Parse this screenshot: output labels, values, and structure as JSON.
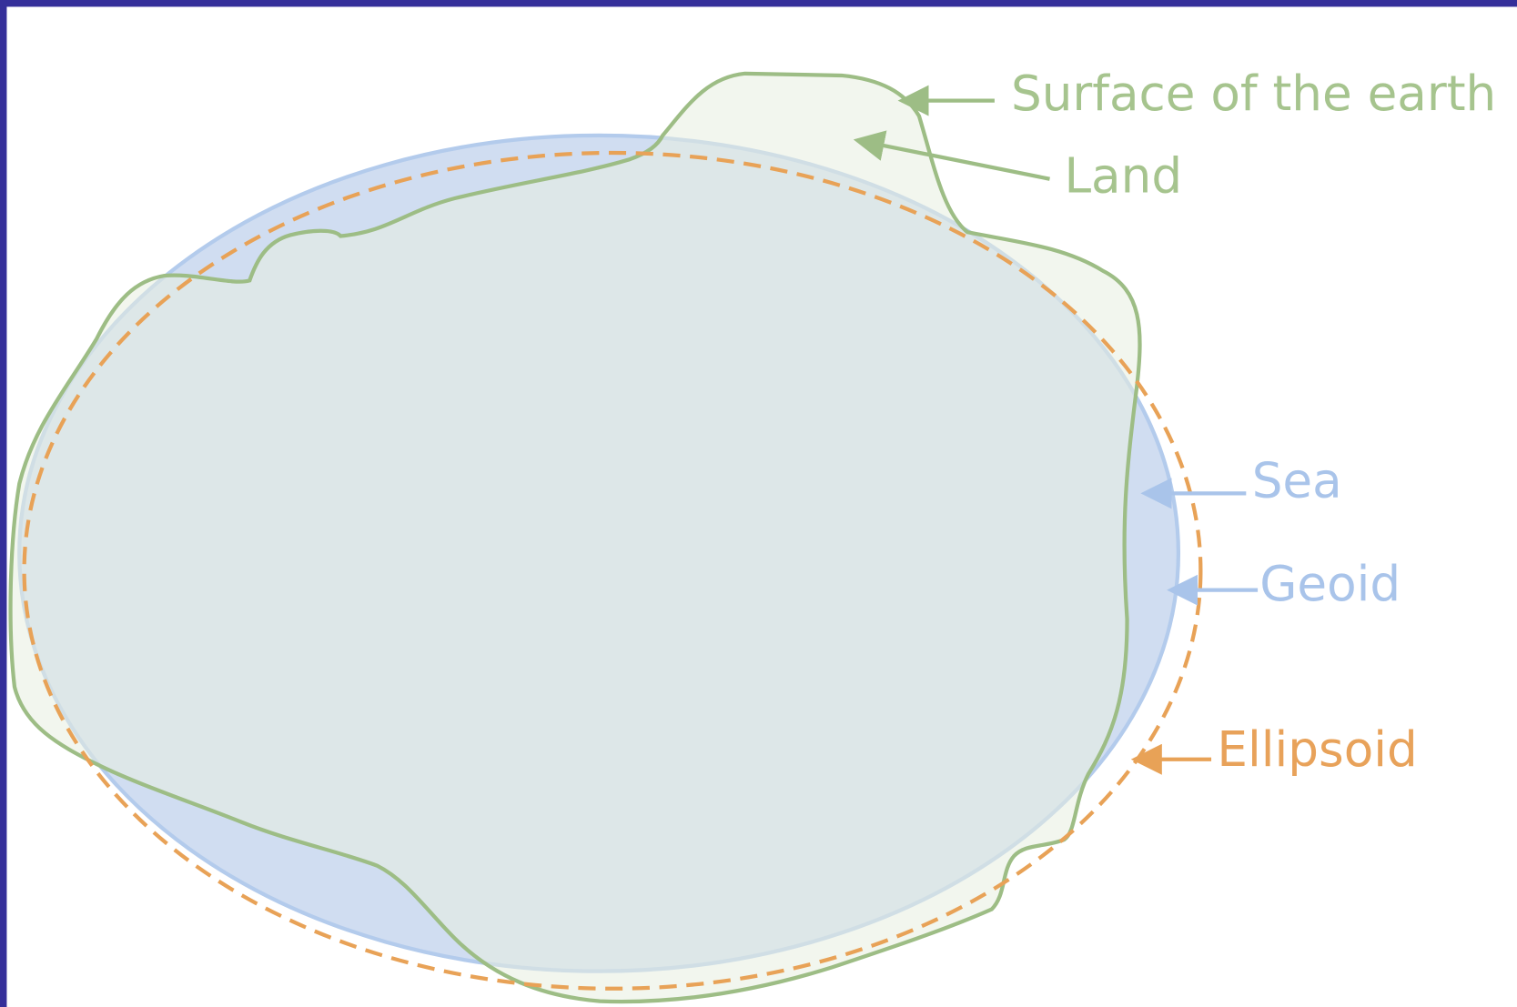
{
  "labels": {
    "surface": "Surface of the earth",
    "land": "Land",
    "sea": "Sea",
    "geoid": "Geoid",
    "ellipsoid": "Ellipsoid"
  }
}
